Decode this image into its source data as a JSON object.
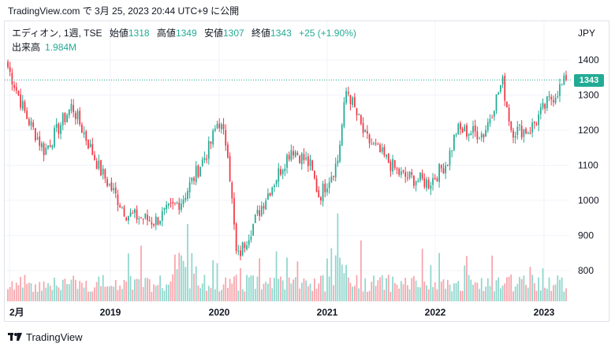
{
  "caption": "TradingView.com で 3月 25, 2023 20:44 UTC+9 に公開",
  "legend": {
    "symbol": "エディオン, 1週, TSE",
    "open_label": "始値",
    "open": "1318",
    "high_label": "高値",
    "high": "1349",
    "low_label": "安値",
    "low": "1307",
    "close_label": "終値",
    "close": "1343",
    "change": "+25 (+1.90%)",
    "volume_label": "出来高",
    "volume": "1.984M"
  },
  "currency": "JPY",
  "last_price_tag": "1343",
  "footer_brand": "TradingView",
  "colors": {
    "up": "#22ab94",
    "down": "#f23645",
    "vol_up": "#8fd6cc",
    "vol_down": "#f7a4ab",
    "grid": "#f0f3fa"
  },
  "chart_data": {
    "type": "candlestick",
    "title": "",
    "interval": "weekly",
    "y_ticks": [
      "800",
      "900",
      "1000",
      "1100",
      "1200",
      "1300",
      "1400"
    ],
    "y_range": [
      735,
      1445
    ],
    "x_ticks": [
      "2月",
      "2019",
      "2020",
      "2021",
      "2022",
      "2023"
    ],
    "last_close_line": 1343,
    "key_points": [
      {
        "date": "2018-02",
        "price": 1380
      },
      {
        "date": "2018-04",
        "price": 1240
      },
      {
        "date": "2018-06",
        "price": 1140
      },
      {
        "date": "2018-09",
        "price": 1270
      },
      {
        "date": "2018-12",
        "price": 1090
      },
      {
        "date": "2019-03",
        "price": 960
      },
      {
        "date": "2019-06",
        "price": 940
      },
      {
        "date": "2019-09",
        "price": 1000
      },
      {
        "date": "2019-12",
        "price": 1150
      },
      {
        "date": "2020-01",
        "price": 1230
      },
      {
        "date": "2020-02",
        "price": 1150
      },
      {
        "date": "2020-03",
        "price": 830
      },
      {
        "date": "2020-06",
        "price": 1000
      },
      {
        "date": "2020-09",
        "price": 1150
      },
      {
        "date": "2020-11",
        "price": 1100
      },
      {
        "date": "2020-12",
        "price": 1010
      },
      {
        "date": "2021-02",
        "price": 1110
      },
      {
        "date": "2021-03",
        "price": 1320
      },
      {
        "date": "2021-05",
        "price": 1180
      },
      {
        "date": "2021-09",
        "price": 1070
      },
      {
        "date": "2021-12",
        "price": 1050
      },
      {
        "date": "2022-02",
        "price": 1110
      },
      {
        "date": "2022-03",
        "price": 1200
      },
      {
        "date": "2022-06",
        "price": 1190
      },
      {
        "date": "2022-08",
        "price": 1340
      },
      {
        "date": "2022-09",
        "price": 1200
      },
      {
        "date": "2022-11",
        "price": 1200
      },
      {
        "date": "2023-01",
        "price": 1280
      },
      {
        "date": "2023-03",
        "price": 1343
      }
    ]
  }
}
